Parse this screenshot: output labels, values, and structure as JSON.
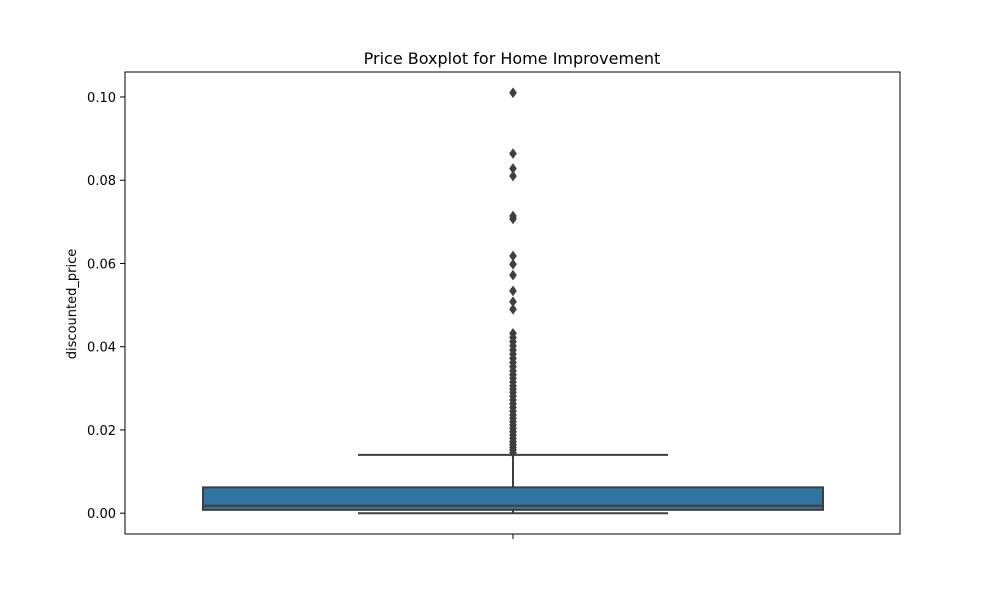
{
  "chart_data": {
    "type": "box",
    "title": "Price Boxplot for Home Improvement",
    "xlabel": "",
    "ylabel": "discounted_price",
    "ylim": [
      -0.005,
      0.106
    ],
    "yticks": [
      0.0,
      0.02,
      0.04,
      0.06,
      0.08,
      0.1
    ],
    "ytick_labels": [
      "0.00",
      "0.02",
      "0.04",
      "0.06",
      "0.08",
      "0.10"
    ],
    "grid": false,
    "box_color": "#3274a1",
    "line_color": "#3f3f3f",
    "box": {
      "whisker_low": 0.0,
      "q1": 0.0008,
      "median": 0.0018,
      "q3": 0.0062,
      "whisker_high": 0.014
    },
    "outliers": [
      0.0145,
      0.0152,
      0.0158,
      0.0165,
      0.0172,
      0.018,
      0.0188,
      0.0196,
      0.0204,
      0.0212,
      0.022,
      0.0228,
      0.0236,
      0.0245,
      0.0254,
      0.0263,
      0.0272,
      0.0281,
      0.029,
      0.0298,
      0.0306,
      0.0315,
      0.0324,
      0.0333,
      0.0342,
      0.0352,
      0.0362,
      0.0372,
      0.0382,
      0.0392,
      0.0402,
      0.0412,
      0.0422,
      0.0432,
      0.049,
      0.0508,
      0.0534,
      0.0572,
      0.0598,
      0.0618,
      0.0707,
      0.0714,
      0.081,
      0.0828,
      0.0864,
      0.101
    ]
  }
}
